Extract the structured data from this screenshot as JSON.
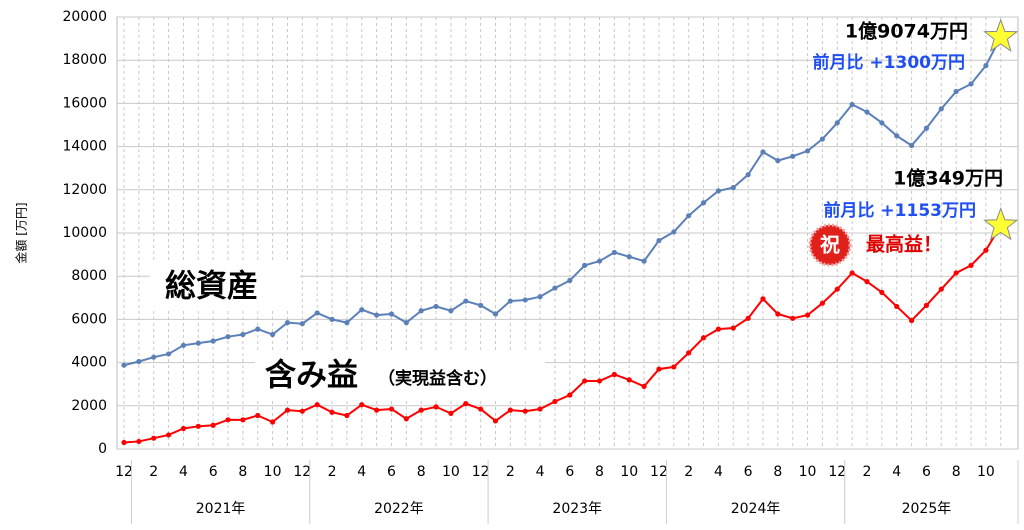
{
  "chart_data": {
    "type": "line",
    "y_label": "金額 [万円]",
    "categories": [
      "12",
      null,
      "2",
      null,
      "4",
      null,
      "6",
      null,
      "8",
      null,
      "10",
      null,
      "12",
      null,
      "2",
      null,
      "4",
      null,
      "6",
      null,
      "8",
      null,
      "10",
      null,
      "12",
      null,
      "2",
      null,
      "4",
      null,
      "6",
      null,
      "8",
      null,
      "10",
      null,
      "12",
      null,
      "2",
      null,
      "4",
      null,
      "6",
      null,
      "8",
      null,
      "10",
      null,
      "12",
      null,
      "2",
      null,
      "4",
      null,
      "6",
      null,
      "8",
      null,
      "10",
      null
    ],
    "year_groups": [
      "2021年",
      "2022年",
      "2023年",
      "2024年",
      "2025年"
    ],
    "series": [
      {
        "name": "総資産",
        "color": "#5b80b8",
        "values": [
          3880,
          4050,
          4250,
          4400,
          4800,
          4900,
          5000,
          5200,
          5300,
          5550,
          5300,
          5850,
          5800,
          6300,
          6000,
          5850,
          6450,
          6200,
          6250,
          5850,
          6400,
          6600,
          6400,
          6850,
          6650,
          6250,
          6850,
          6900,
          7050,
          7450,
          7800,
          8500,
          8700,
          9100,
          8900,
          8700,
          9650,
          10050,
          10800,
          11400,
          11950,
          12100,
          12700,
          13750,
          13350,
          13550,
          13800,
          14350,
          15100,
          15950,
          15600,
          15100,
          14500,
          14050,
          14850,
          15750,
          16550,
          16900,
          17750,
          19074
        ]
      },
      {
        "name": "含み益",
        "name_note": "（実現益含む）",
        "color": "#ff0000",
        "values": [
          300,
          350,
          500,
          650,
          950,
          1050,
          1100,
          1350,
          1350,
          1550,
          1250,
          1800,
          1750,
          2050,
          1700,
          1550,
          2050,
          1800,
          1850,
          1400,
          1800,
          1950,
          1650,
          2100,
          1850,
          1300,
          1800,
          1750,
          1850,
          2200,
          2500,
          3150,
          3150,
          3450,
          3200,
          2900,
          3700,
          3800,
          4450,
          5150,
          5550,
          5600,
          6050,
          6950,
          6250,
          6050,
          6200,
          6750,
          7400,
          8150,
          7750,
          7250,
          6600,
          5950,
          6650,
          7400,
          8150,
          8500,
          9200,
          10349
        ]
      }
    ],
    "annotations": {
      "total_amount": "1億9074万円",
      "total_change": "前月比 +1300万円",
      "gain_amount": "1億349万円",
      "gain_change": "前月比 +1153万円",
      "badge": "祝",
      "record": "最高益！"
    },
    "ylim": [
      0,
      20000
    ],
    "yticks": [
      0,
      2000,
      4000,
      6000,
      8000,
      10000,
      12000,
      14000,
      16000,
      18000,
      20000
    ],
    "grid": true
  }
}
